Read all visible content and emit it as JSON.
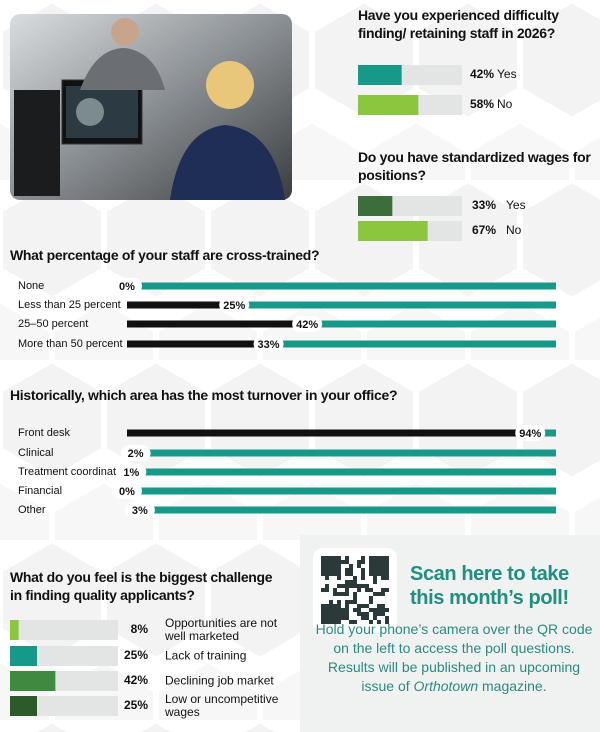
{
  "chart_data": [
    {
      "type": "bar",
      "orientation": "horizontal",
      "title": "Have you experienced difficulty finding/ retaining staff in 2026?",
      "categories": [
        "Yes",
        "No"
      ],
      "values": [
        42,
        58
      ],
      "value_labels": [
        "42%",
        "58%"
      ],
      "colors": [
        "#17998a",
        "#8cc63f"
      ],
      "xlim": [
        0,
        100
      ]
    },
    {
      "type": "bar",
      "orientation": "horizontal",
      "title": "Do you have standardized wages for positions?",
      "categories": [
        "Yes",
        "No"
      ],
      "values": [
        33,
        67
      ],
      "value_labels": [
        "33%",
        "67%"
      ],
      "colors": [
        "#3b6e3b",
        "#8cc63f"
      ],
      "xlim": [
        0,
        100
      ]
    },
    {
      "type": "bar",
      "orientation": "horizontal",
      "title": "What percentage of your staff are cross-trained?",
      "categories": [
        "None",
        "Less than 25 percent",
        "25–50 percent",
        "More than 50 percent"
      ],
      "values": [
        0,
        25,
        42,
        33
      ],
      "value_labels": [
        "0%",
        "25%",
        "42%",
        "33%"
      ],
      "color": "#111111",
      "xlim": [
        0,
        100
      ]
    },
    {
      "type": "bar",
      "orientation": "horizontal",
      "title": "Historically, which area has the most turnover in your office?",
      "categories": [
        "Front desk",
        "Clinical",
        "Treatment coordinator",
        "Financial",
        "Other"
      ],
      "values": [
        94,
        2,
        1,
        0,
        3
      ],
      "value_labels": [
        "94%",
        "2%",
        "1%",
        "0%",
        "3%"
      ],
      "color": "#111111",
      "xlim": [
        0,
        100
      ]
    },
    {
      "type": "bar",
      "orientation": "horizontal",
      "title": "What do you feel is the biggest challenge in finding quality applicants?",
      "categories": [
        "Opportunities are not well marketed",
        "Lack of training",
        "Declining job market",
        "Low or uncompetitive wages"
      ],
      "values": [
        8,
        25,
        42,
        25
      ],
      "value_labels": [
        "8%",
        "25%",
        "42%",
        "25%"
      ],
      "colors": [
        "#8cc63f",
        "#17998a",
        "#3e8a3e",
        "#2b5a2b"
      ],
      "xlim": [
        0,
        100
      ]
    }
  ],
  "poll": {
    "heading": "Scan here to take this month’s poll!",
    "body": "Hold your phone’s camera over the QR code on the left to access the poll questions. Results will be published in an upcoming issue of",
    "magazine": "Orthotown",
    "body_end": "magazine."
  }
}
